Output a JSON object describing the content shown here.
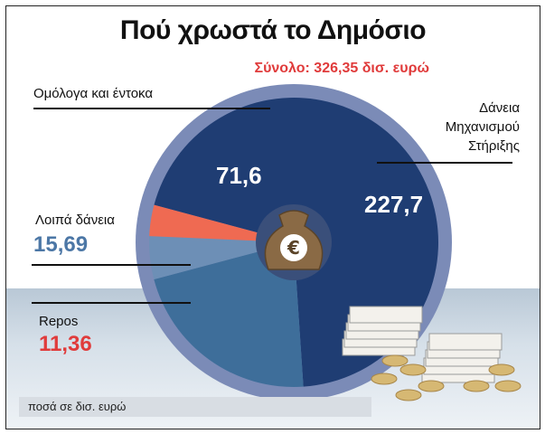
{
  "title": "Πού χρωστά το Δημόσιο",
  "total_label": "Σύνολο: 326,35 δισ. ευρώ",
  "footer_note": "ποσά σε δισ. ευρώ",
  "labels": {
    "bonds": "Ομόλογα και έντοκα",
    "esm": [
      "Δάνεια",
      "Μηχανισμού",
      "Στήριξης"
    ],
    "other_loans": "Λοιπά δάνεια",
    "repos": "Repos"
  },
  "colors": {
    "esm": "#1f3d73",
    "bonds": "#3e6e9a",
    "other_loans": "#6d8fb6",
    "repos": "#ef6a52",
    "ring": "#7b8bb7",
    "red_text": "#e03b3b",
    "blue_text": "#4c77a6"
  },
  "chart_data": {
    "type": "pie",
    "title": "Πού χρωστά το Δημόσιο",
    "subtitle": "Σύνολο: 326,35 δισ. ευρώ",
    "unit": "δισ. ευρώ",
    "slices": [
      {
        "name": "Δάνεια Μηχανισμού Στήριξης",
        "value": 227.7,
        "value_label": "227,7"
      },
      {
        "name": "Ομόλογα και έντοκα",
        "value": 71.6,
        "value_label": "71,6"
      },
      {
        "name": "Λοιπά δάνεια",
        "value": 15.69,
        "value_label": "15,69"
      },
      {
        "name": "Repos",
        "value": 11.36,
        "value_label": "11,36"
      }
    ]
  }
}
